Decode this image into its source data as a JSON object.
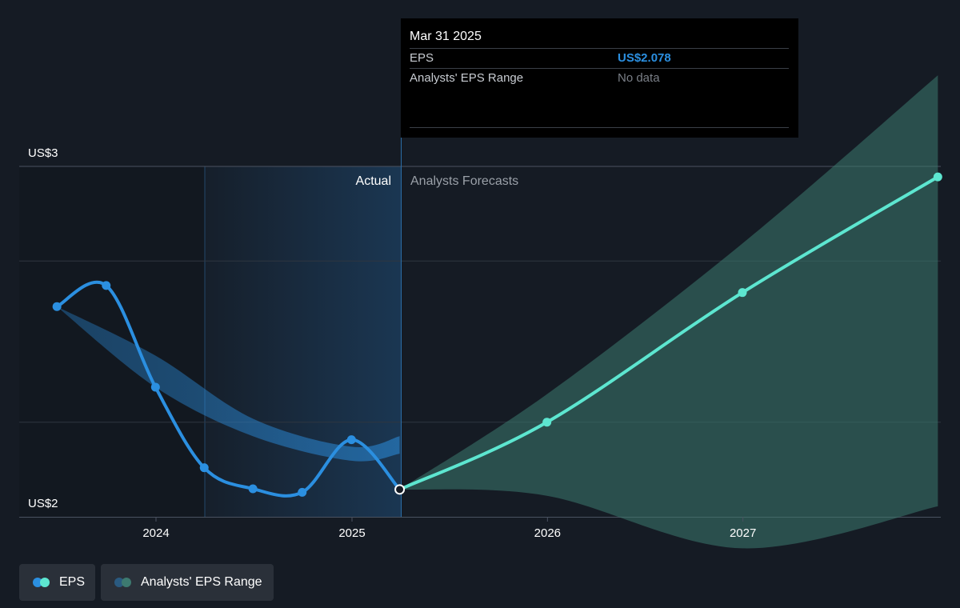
{
  "chart_data": {
    "type": "line",
    "x_ticks": [
      "2024",
      "2025",
      "2026",
      "2027"
    ],
    "y_ticks": [
      "US$3",
      "US$2"
    ],
    "ylim": [
      2,
      3
    ],
    "divider_labels": {
      "actual": "Actual",
      "forecast": "Analysts Forecasts"
    },
    "series": [
      {
        "name": "EPS",
        "kind": "actual",
        "color": "#2b8fe0",
        "points": [
          {
            "x": "2023-06-30",
            "y": 2.6
          },
          {
            "x": "2023-09-30",
            "y": 2.66
          },
          {
            "x": "2023-12-31",
            "y": 2.37
          },
          {
            "x": "2024-03-31",
            "y": 2.14
          },
          {
            "x": "2024-06-30",
            "y": 2.08
          },
          {
            "x": "2024-09-30",
            "y": 2.07
          },
          {
            "x": "2024-12-31",
            "y": 2.22
          },
          {
            "x": "2025-03-31",
            "y": 2.078
          }
        ]
      },
      {
        "name": "EPS",
        "kind": "forecast",
        "color": "#5de6d0",
        "points": [
          {
            "x": "2025-03-31",
            "y": 2.078
          },
          {
            "x": "2025-12-31",
            "y": 2.27
          },
          {
            "x": "2026-12-31",
            "y": 2.64
          },
          {
            "x": "2027-12-31",
            "y": 2.97
          }
        ]
      }
    ],
    "ranges": [
      {
        "name": "Analysts' EPS Range",
        "kind": "actual",
        "color": "#2b8fe0",
        "upper": [
          {
            "x": "2023-06-30",
            "y": 2.6
          },
          {
            "x": "2023-12-31",
            "y": 2.46
          },
          {
            "x": "2024-06-30",
            "y": 2.28
          },
          {
            "x": "2024-12-31",
            "y": 2.2
          },
          {
            "x": "2025-03-31",
            "y": 2.23
          }
        ],
        "lower": [
          {
            "x": "2023-06-30",
            "y": 2.6
          },
          {
            "x": "2023-12-31",
            "y": 2.37
          },
          {
            "x": "2024-06-30",
            "y": 2.23
          },
          {
            "x": "2024-12-31",
            "y": 2.16
          },
          {
            "x": "2025-03-31",
            "y": 2.18
          }
        ]
      },
      {
        "name": "Analysts' EPS Range",
        "kind": "forecast",
        "color": "#3d7a70",
        "upper": [
          {
            "x": "2025-03-31",
            "y": 2.078
          },
          {
            "x": "2025-12-31",
            "y": 2.35
          },
          {
            "x": "2026-12-31",
            "y": 2.78
          },
          {
            "x": "2027-12-31",
            "y": 3.26
          }
        ],
        "lower": [
          {
            "x": "2025-03-31",
            "y": 2.078
          },
          {
            "x": "2025-12-31",
            "y": 2.06
          },
          {
            "x": "2026-12-31",
            "y": 1.91
          },
          {
            "x": "2027-12-31",
            "y": 2.03
          }
        ]
      }
    ],
    "tooltip": {
      "date": "Mar 31 2025",
      "rows": [
        {
          "label": "EPS",
          "value": "US$2.078"
        },
        {
          "label": "Analysts' EPS Range",
          "value": "No data"
        }
      ]
    },
    "legend": [
      {
        "label": "EPS",
        "colors": [
          "#2b8fe0",
          "#5de6d0"
        ]
      },
      {
        "label": "Analysts' EPS Range",
        "colors": [
          "#2a5a80",
          "#3d7a70"
        ]
      }
    ]
  }
}
